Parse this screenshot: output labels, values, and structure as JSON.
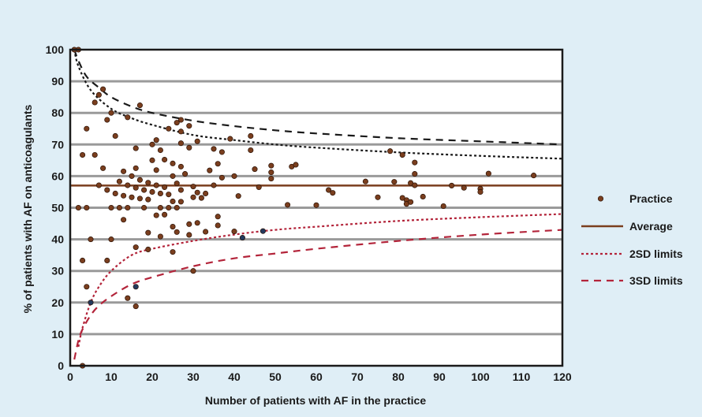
{
  "chart_data": {
    "type": "scatter",
    "xlabel": "Number of patients with AF in the practice",
    "ylabel": "% of patients with AF on anticoagulants",
    "xlim": [
      0,
      120
    ],
    "ylim": [
      0,
      100
    ],
    "xticks": [
      0,
      10,
      20,
      30,
      40,
      50,
      60,
      70,
      80,
      90,
      100,
      110,
      120
    ],
    "yticks": [
      0,
      10,
      20,
      30,
      40,
      50,
      60,
      70,
      80,
      90,
      100
    ],
    "grid": "horizontal",
    "legend_position": "right",
    "average": 57,
    "colors": {
      "background": "#dfeef6",
      "plot_area": "#ffffff",
      "gridline": "#9a9a9a",
      "point": "#7a3e1e",
      "point_alt": "#233a5e",
      "average": "#7a3e1e",
      "upper_limits": "#1a1a1a",
      "lower_limits": "#b3243a"
    },
    "legend": [
      {
        "label": "Practice",
        "symbol": "point"
      },
      {
        "label": "Average",
        "symbol": "solid"
      },
      {
        "label": "2SD limits",
        "symbol": "dotted"
      },
      {
        "label": "3SD limits",
        "symbol": "dashed"
      }
    ],
    "limits": {
      "2SD": {
        "upper": [
          [
            1,
            100
          ],
          [
            2,
            94.8
          ],
          [
            5,
            87.2
          ],
          [
            10,
            81.3
          ],
          [
            15,
            78.3
          ],
          [
            20,
            76.2
          ],
          [
            30,
            73
          ],
          [
            40,
            71.4
          ],
          [
            50,
            70
          ],
          [
            60,
            69
          ],
          [
            80,
            67.5
          ],
          [
            100,
            66.4
          ],
          [
            120,
            65.5
          ]
        ],
        "lower": [
          [
            2,
            6
          ],
          [
            3,
            12
          ],
          [
            5,
            20
          ],
          [
            7,
            25
          ],
          [
            10,
            30
          ],
          [
            15,
            35
          ],
          [
            20,
            37
          ],
          [
            30,
            39.5
          ],
          [
            40,
            41.5
          ],
          [
            50,
            43
          ],
          [
            60,
            44
          ],
          [
            80,
            45.8
          ],
          [
            100,
            47
          ],
          [
            120,
            48
          ]
        ]
      },
      "3SD": {
        "upper": [
          [
            1,
            100
          ],
          [
            2,
            96.5
          ],
          [
            4,
            91.5
          ],
          [
            7,
            88
          ],
          [
            10,
            85
          ],
          [
            15,
            82
          ],
          [
            20,
            80
          ],
          [
            30,
            77.5
          ],
          [
            40,
            75.8
          ],
          [
            50,
            74.5
          ],
          [
            60,
            73.5
          ],
          [
            80,
            72
          ],
          [
            100,
            71
          ],
          [
            120,
            70
          ]
        ],
        "lower": [
          [
            1,
            2
          ],
          [
            2,
            8
          ],
          [
            3,
            11.5
          ],
          [
            5,
            16
          ],
          [
            7,
            19
          ],
          [
            10,
            22
          ],
          [
            15,
            25.8
          ],
          [
            20,
            28
          ],
          [
            30,
            31.5
          ],
          [
            40,
            34
          ],
          [
            50,
            35.5
          ],
          [
            60,
            37
          ],
          [
            80,
            39.5
          ],
          [
            100,
            41.5
          ],
          [
            120,
            43
          ]
        ]
      }
    },
    "points": [
      [
        1,
        100
      ],
      [
        2,
        100
      ],
      [
        2,
        50
      ],
      [
        3,
        66.7
      ],
      [
        3,
        33.3
      ],
      [
        3,
        0
      ],
      [
        4,
        75
      ],
      [
        4,
        50
      ],
      [
        4,
        25
      ],
      [
        5,
        40
      ],
      [
        5,
        20
      ],
      [
        6,
        83.3
      ],
      [
        6,
        66.7
      ],
      [
        7,
        85.7
      ],
      [
        7,
        57.1
      ],
      [
        8,
        87.5
      ],
      [
        8,
        62.5
      ],
      [
        9,
        77.8
      ],
      [
        9,
        55.6
      ],
      [
        9,
        33.3
      ],
      [
        10,
        80
      ],
      [
        10,
        50
      ],
      [
        10,
        40
      ],
      [
        11,
        72.7
      ],
      [
        11,
        54.5
      ],
      [
        12,
        58.3
      ],
      [
        12,
        50
      ],
      [
        13,
        61.5
      ],
      [
        13,
        53.8
      ],
      [
        13,
        46.2
      ],
      [
        14,
        78.6
      ],
      [
        14,
        57.1
      ],
      [
        14,
        50
      ],
      [
        14,
        21.4
      ],
      [
        15,
        60
      ],
      [
        15,
        53.3
      ],
      [
        16,
        68.8
      ],
      [
        16,
        62.5
      ],
      [
        16,
        56.3
      ],
      [
        16,
        37.5
      ],
      [
        16,
        25
      ],
      [
        16,
        18.8
      ],
      [
        17,
        82.4
      ],
      [
        17,
        58.8
      ],
      [
        17,
        52.9
      ],
      [
        18,
        55.6
      ],
      [
        18,
        50
      ],
      [
        19,
        57.9
      ],
      [
        19,
        52.6
      ],
      [
        19,
        42.1
      ],
      [
        19,
        36.8
      ],
      [
        20,
        70
      ],
      [
        20,
        65
      ],
      [
        20,
        55
      ],
      [
        21,
        71.4
      ],
      [
        21,
        61.9
      ],
      [
        21,
        57.1
      ],
      [
        21,
        47.6
      ],
      [
        22,
        68.2
      ],
      [
        22,
        54.5
      ],
      [
        22,
        50
      ],
      [
        22,
        40.9
      ],
      [
        23,
        65.2
      ],
      [
        23,
        56.5
      ],
      [
        23,
        47.8
      ],
      [
        24,
        75
      ],
      [
        24,
        54.2
      ],
      [
        24,
        50
      ],
      [
        25,
        64
      ],
      [
        25,
        60
      ],
      [
        25,
        52
      ],
      [
        25,
        44
      ],
      [
        25,
        36
      ],
      [
        26,
        76.9
      ],
      [
        26,
        57.7
      ],
      [
        26,
        50
      ],
      [
        26,
        42.3
      ],
      [
        27,
        77.8
      ],
      [
        27,
        74.1
      ],
      [
        27,
        70.4
      ],
      [
        27,
        63
      ],
      [
        27,
        55.6
      ],
      [
        27,
        51.9
      ],
      [
        28,
        60.7
      ],
      [
        29,
        75.9
      ],
      [
        29,
        69
      ],
      [
        29,
        44.8
      ],
      [
        29,
        41.4
      ],
      [
        30,
        56.7
      ],
      [
        30,
        53.3
      ],
      [
        30,
        30
      ],
      [
        31,
        71
      ],
      [
        31,
        54.8
      ],
      [
        31,
        45.2
      ],
      [
        32,
        53.1
      ],
      [
        33,
        54.5
      ],
      [
        33,
        42.4
      ],
      [
        34,
        61.8
      ],
      [
        35,
        68.6
      ],
      [
        35,
        57.1
      ],
      [
        36,
        63.9
      ],
      [
        36,
        47.2
      ],
      [
        36,
        44.4
      ],
      [
        37,
        67.6
      ],
      [
        37,
        59.5
      ],
      [
        39,
        71.8
      ],
      [
        40,
        60
      ],
      [
        40,
        42.5
      ],
      [
        41,
        53.7
      ],
      [
        42,
        40.5
      ],
      [
        44,
        72.7
      ],
      [
        44,
        68.2
      ],
      [
        45,
        62.2
      ],
      [
        46,
        56.5
      ],
      [
        47,
        42.6
      ],
      [
        49,
        63.3
      ],
      [
        49,
        61.2
      ],
      [
        49,
        59.2
      ],
      [
        53,
        50.9
      ],
      [
        54,
        63
      ],
      [
        55,
        63.6
      ],
      [
        60,
        50.8
      ],
      [
        63,
        55.6
      ],
      [
        64,
        54.7
      ],
      [
        72,
        58.3
      ],
      [
        75,
        53.3
      ],
      [
        78,
        67.9
      ],
      [
        79,
        58.2
      ],
      [
        81,
        66.7
      ],
      [
        81,
        53.1
      ],
      [
        82,
        52.4
      ],
      [
        82,
        51.2
      ],
      [
        83,
        57.8
      ],
      [
        83,
        51.8
      ],
      [
        84,
        64.3
      ],
      [
        84,
        60.7
      ],
      [
        84,
        57.1
      ],
      [
        86,
        53.5
      ],
      [
        91,
        50.5
      ],
      [
        93,
        57
      ],
      [
        96,
        56.3
      ],
      [
        100,
        56
      ],
      [
        100,
        55
      ],
      [
        102,
        60.8
      ],
      [
        113,
        60.2
      ]
    ],
    "alt_points": [
      [
        5,
        20
      ],
      [
        16,
        25
      ],
      [
        42,
        40.5
      ],
      [
        47,
        42.6
      ]
    ]
  }
}
